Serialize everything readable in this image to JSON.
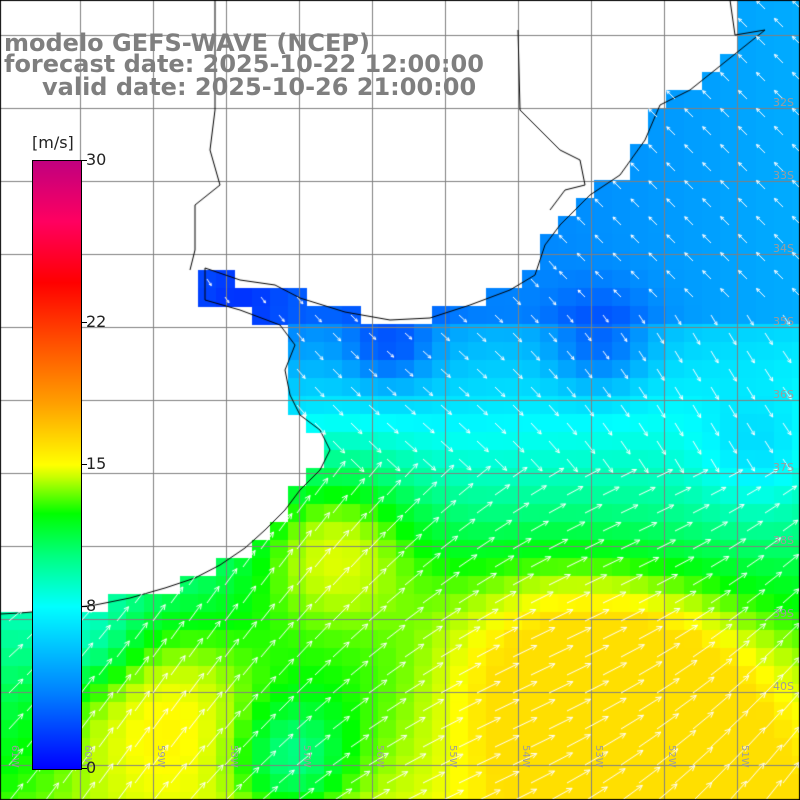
{
  "title": {
    "line1": "modelo GEFS-WAVE (NCEP)",
    "line2": "forecast date: 2025-10-22 12:00:00",
    "line3": "valid date: 2025-10-26 21:00:00"
  },
  "colorbar": {
    "unit": "[m/s]",
    "ticks": [
      "30",
      "22",
      "15",
      "8",
      "0"
    ],
    "tick_values": [
      30,
      22,
      15,
      8,
      0
    ],
    "colors": {
      "low": "#0000ff",
      "mid": "#00ff00",
      "high": "#ff0000",
      "max": "#c0007f"
    }
  },
  "map": {
    "lat_labels": [
      "32S",
      "33S",
      "34S",
      "35S",
      "36S",
      "37S",
      "38S",
      "39S",
      "40S"
    ],
    "lon_labels": [
      "61W",
      "60W",
      "59W",
      "58W",
      "57W",
      "56W",
      "55W",
      "54W",
      "53W",
      "52W",
      "51W"
    ],
    "land_color": "#ffffff",
    "grid_color": "#808080",
    "arrow_color": "#ffffff"
  }
}
